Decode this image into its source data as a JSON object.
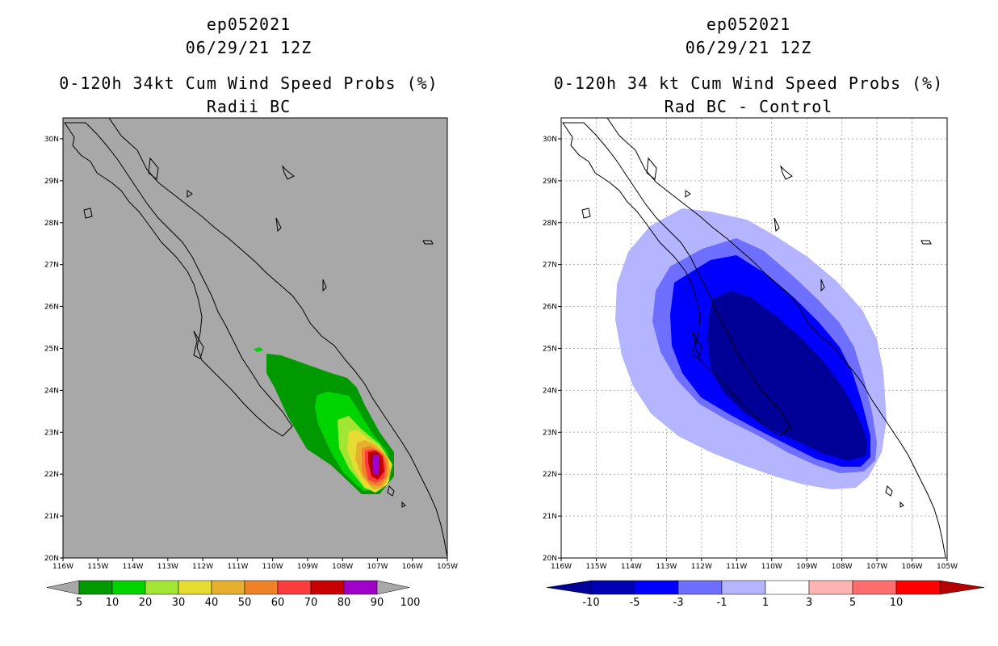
{
  "left_panel": {
    "line1": "ep052021",
    "line2": "06/29/21 12Z",
    "line3": "0-120h 34kt Cum Wind Speed Probs (%)",
    "line4": "Radii BC"
  },
  "right_panel": {
    "line1": "ep052021",
    "line2": "06/29/21 12Z",
    "line3": "0-120h 34 kt Cum Wind Speed Probs (%)",
    "line4": "Rad BC - Control"
  },
  "colors": {
    "land_gray": "#a8a8a8",
    "coast": "#000000",
    "grid": "#b0b0b0"
  },
  "chart_data": [
    {
      "type": "heatmap",
      "title": "0-120h 34kt Cum Wind Speed Probs (%) Radii BC",
      "lon_ticks": [
        "116W",
        "115W",
        "114W",
        "113W",
        "112W",
        "111W",
        "110W",
        "109W",
        "108W",
        "107W",
        "106W",
        "105W"
      ],
      "lat_ticks": [
        "20N",
        "21N",
        "22N",
        "23N",
        "24N",
        "25N",
        "26N",
        "27N",
        "28N",
        "29N",
        "30N"
      ],
      "xlim": [
        -116,
        -105
      ],
      "ylim": [
        20,
        30.5
      ],
      "legend": {
        "labels": [
          "5",
          "10",
          "20",
          "30",
          "40",
          "50",
          "60",
          "70",
          "80",
          "90",
          "100"
        ],
        "colors": [
          "#009a00",
          "#00d400",
          "#a0e632",
          "#e6dc32",
          "#e6af2d",
          "#f08228",
          "#fa3c3c",
          "#c80000",
          "#a000c8"
        ]
      },
      "max_location": {
        "lon": -107.0,
        "lat": 22.3
      },
      "max_value_range": "90-100"
    },
    {
      "type": "heatmap",
      "title": "0-120h 34 kt Cum Wind Speed Probs (%) Rad BC - Control",
      "lon_ticks": [
        "116W",
        "115W",
        "114W",
        "113W",
        "112W",
        "111W",
        "110W",
        "109W",
        "108W",
        "107W",
        "106W",
        "105W"
      ],
      "lat_ticks": [
        "20N",
        "21N",
        "22N",
        "23N",
        "24N",
        "25N",
        "26N",
        "27N",
        "28N",
        "29N",
        "30N"
      ],
      "xlim": [
        -116,
        -105
      ],
      "ylim": [
        20,
        30.5
      ],
      "legend": {
        "labels": [
          "-10",
          "-5",
          "-3",
          "-1",
          "1",
          "3",
          "5",
          "10"
        ],
        "colors": [
          "#0000b4",
          "#0000ff",
          "#6e6eff",
          "#b4b4ff",
          "#ffffff",
          "#ffb4b4",
          "#ff6e6e",
          "#ff0000",
          "#b40000",
          "#000096"
        ]
      },
      "min_location": {
        "lon": -109.5,
        "lat": 24.0
      },
      "min_value_range": "< -10"
    }
  ]
}
